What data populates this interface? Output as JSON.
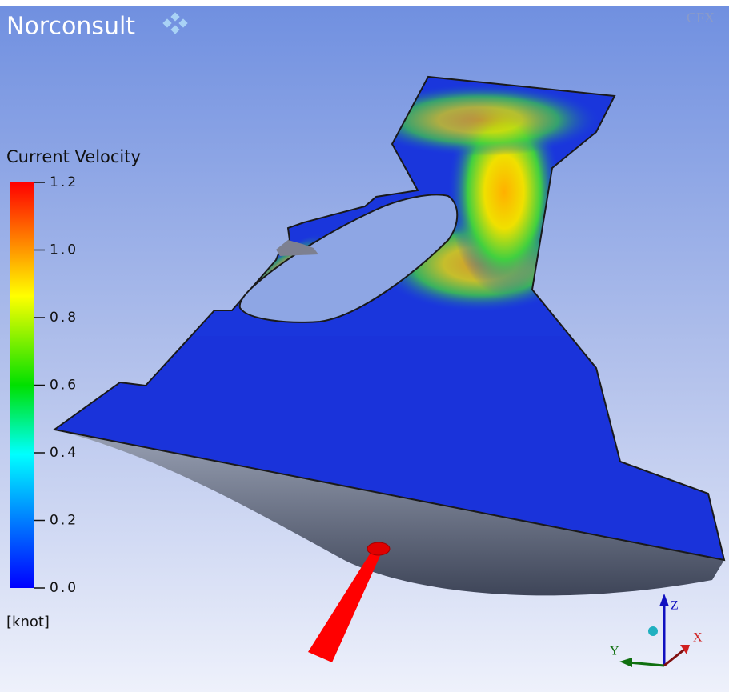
{
  "logo": {
    "text": "Norconsult"
  },
  "watermark": "CFX",
  "legend": {
    "title": "Current  Velocity",
    "unit": "[knot]",
    "range": [
      0,
      1.2
    ],
    "ticks": [
      {
        "value": 0,
        "label": "0.0"
      },
      0.2,
      0.4,
      0.6,
      0.8,
      {
        "value": 1,
        "label": "1.0"
      },
      1.2
    ]
  },
  "axes": {
    "z": "Z",
    "y": "Y",
    "x": "X"
  }
}
